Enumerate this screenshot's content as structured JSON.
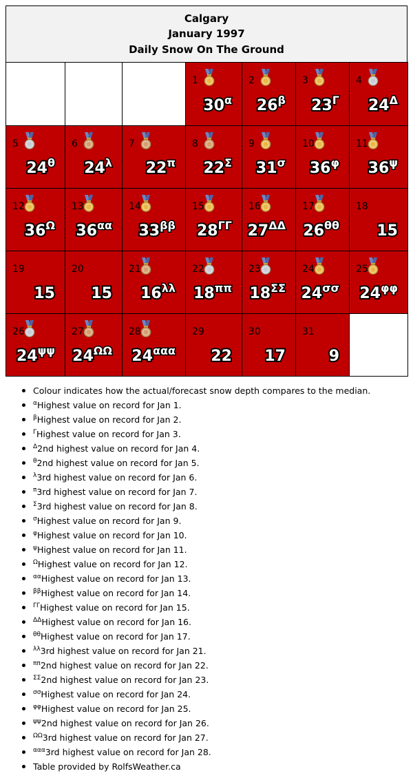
{
  "header": {
    "city": "Calgary",
    "month": "January 1997",
    "subtitle": "Daily Snow On The Ground"
  },
  "colors": {
    "above_median": "#c00000",
    "empty": "#ffffff",
    "header_bg": "#f2f2f2",
    "medal_gold": "#e8b84a",
    "medal_silver": "#c8ccd4",
    "medal_bronze": "#d4a070",
    "ribbon": "#6a86c6"
  },
  "calendar": {
    "cells": [
      {
        "empty": true
      },
      {
        "empty": true
      },
      {
        "empty": true
      },
      {
        "day": "1",
        "value": "30",
        "mark": "α",
        "medal": "gold"
      },
      {
        "day": "2",
        "value": "26",
        "mark": "β",
        "medal": "gold"
      },
      {
        "day": "3",
        "value": "23",
        "mark": "Γ",
        "medal": "gold"
      },
      {
        "day": "4",
        "value": "24",
        "mark": "Δ",
        "medal": "silver"
      },
      {
        "day": "5",
        "value": "24",
        "mark": "θ",
        "medal": "silver"
      },
      {
        "day": "6",
        "value": "24",
        "mark": "λ",
        "medal": "bronze"
      },
      {
        "day": "7",
        "value": "22",
        "mark": "π",
        "medal": "bronze"
      },
      {
        "day": "8",
        "value": "22",
        "mark": "Σ",
        "medal": "bronze"
      },
      {
        "day": "9",
        "value": "31",
        "mark": "σ",
        "medal": "gold"
      },
      {
        "day": "10",
        "value": "36",
        "mark": "φ",
        "medal": "gold"
      },
      {
        "day": "11",
        "value": "36",
        "mark": "ψ",
        "medal": "gold"
      },
      {
        "day": "12",
        "value": "36",
        "mark": "Ω",
        "medal": "gold"
      },
      {
        "day": "13",
        "value": "36",
        "mark": "αα",
        "medal": "gold"
      },
      {
        "day": "14",
        "value": "33",
        "mark": "ββ",
        "medal": "gold"
      },
      {
        "day": "15",
        "value": "28",
        "mark": "ΓΓ",
        "medal": "gold"
      },
      {
        "day": "16",
        "value": "27",
        "mark": "ΔΔ",
        "medal": "gold"
      },
      {
        "day": "17",
        "value": "26",
        "mark": "θθ",
        "medal": "gold"
      },
      {
        "day": "18",
        "value": "15"
      },
      {
        "day": "19",
        "value": "15"
      },
      {
        "day": "20",
        "value": "15"
      },
      {
        "day": "21",
        "value": "16",
        "mark": "λλ",
        "medal": "bronze"
      },
      {
        "day": "22",
        "value": "18",
        "mark": "ππ",
        "medal": "silver"
      },
      {
        "day": "23",
        "value": "18",
        "mark": "ΣΣ",
        "medal": "silver"
      },
      {
        "day": "24",
        "value": "24",
        "mark": "σσ",
        "medal": "gold"
      },
      {
        "day": "25",
        "value": "24",
        "mark": "φφ",
        "medal": "gold"
      },
      {
        "day": "26",
        "value": "24",
        "mark": "ψψ",
        "medal": "silver"
      },
      {
        "day": "27",
        "value": "24",
        "mark": "ΩΩ",
        "medal": "bronze"
      },
      {
        "day": "28",
        "value": "24",
        "mark": "ααα",
        "medal": "bronze"
      },
      {
        "day": "29",
        "value": "22"
      },
      {
        "day": "30",
        "value": "17"
      },
      {
        "day": "31",
        "value": "9"
      },
      {
        "empty": true
      }
    ]
  },
  "notes": [
    {
      "mark": "",
      "text": "Colour indicates how the actual/forecast snow depth compares to the median."
    },
    {
      "mark": "α",
      "text": "Highest value on record for Jan 1."
    },
    {
      "mark": "β",
      "text": "Highest value on record for Jan 2."
    },
    {
      "mark": "Γ",
      "text": "Highest value on record for Jan 3."
    },
    {
      "mark": "Δ",
      "text": "2nd highest value on record for Jan 4."
    },
    {
      "mark": "θ",
      "text": "2nd highest value on record for Jan 5."
    },
    {
      "mark": "λ",
      "text": "3rd highest value on record for Jan 6."
    },
    {
      "mark": "π",
      "text": "3rd highest value on record for Jan 7."
    },
    {
      "mark": "Σ",
      "text": "3rd highest value on record for Jan 8."
    },
    {
      "mark": "σ",
      "text": "Highest value on record for Jan 9."
    },
    {
      "mark": "φ",
      "text": "Highest value on record for Jan 10."
    },
    {
      "mark": "ψ",
      "text": "Highest value on record for Jan 11."
    },
    {
      "mark": "Ω",
      "text": "Highest value on record for Jan 12."
    },
    {
      "mark": "αα",
      "text": "Highest value on record for Jan 13."
    },
    {
      "mark": "ββ",
      "text": "Highest value on record for Jan 14."
    },
    {
      "mark": "ΓΓ",
      "text": "Highest value on record for Jan 15."
    },
    {
      "mark": "ΔΔ",
      "text": "Highest value on record for Jan 16."
    },
    {
      "mark": "θθ",
      "text": "Highest value on record for Jan 17."
    },
    {
      "mark": "λλ",
      "text": "3rd highest value on record for Jan 21."
    },
    {
      "mark": "ππ",
      "text": "2nd highest value on record for Jan 22."
    },
    {
      "mark": "ΣΣ",
      "text": "2nd highest value on record for Jan 23."
    },
    {
      "mark": "σσ",
      "text": "Highest value on record for Jan 24."
    },
    {
      "mark": "φφ",
      "text": "Highest value on record for Jan 25."
    },
    {
      "mark": "ψψ",
      "text": "2nd highest value on record for Jan 26."
    },
    {
      "mark": "ΩΩ",
      "text": "3rd highest value on record for Jan 27."
    },
    {
      "mark": "ααα",
      "text": "3rd highest value on record for Jan 28."
    },
    {
      "mark": "",
      "text": "Table provided by RolfsWeather.ca"
    }
  ]
}
